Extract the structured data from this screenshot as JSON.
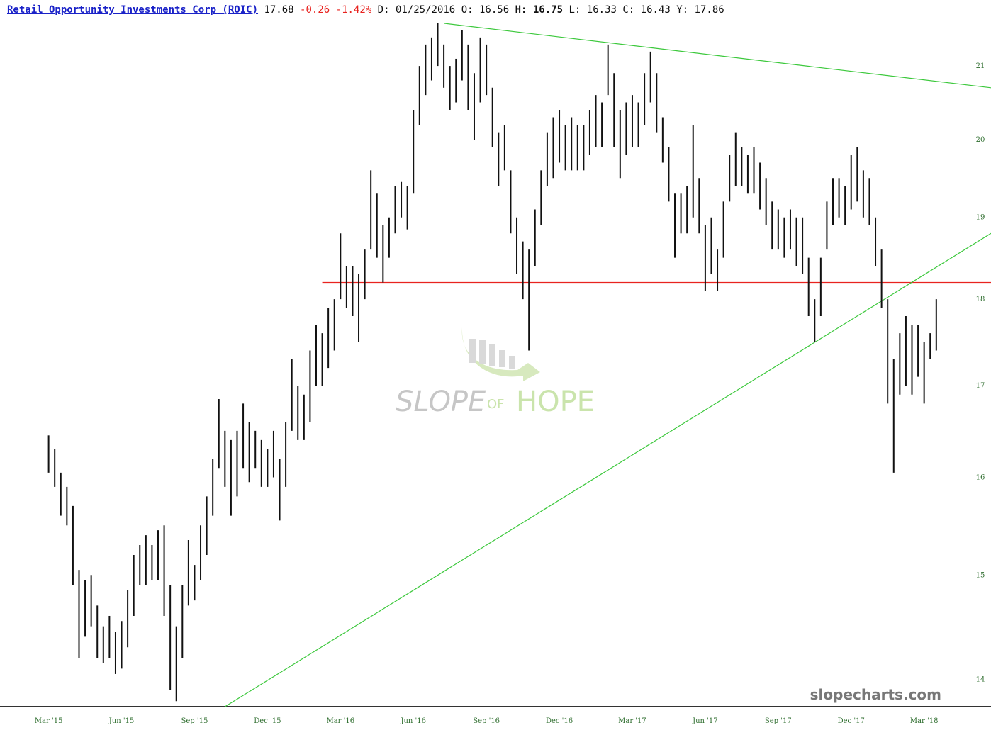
{
  "header": {
    "title": "Retail Opportunity Investments Corp (ROIC)",
    "last": 17.68,
    "change": -0.26,
    "change_pct": "-1.42%",
    "quote": [
      {
        "label": "D:",
        "value": "01/25/2016"
      },
      {
        "label": "O:",
        "value": 16.56
      },
      {
        "label": "H:",
        "value": 16.75
      },
      {
        "label": "L:",
        "value": 16.33
      },
      {
        "label": "C:",
        "value": 16.43
      },
      {
        "label": "Y:",
        "value": 17.86
      }
    ]
  },
  "watermark": {
    "slope": "SLOPE",
    "of": "OF",
    "hope": "HOPE"
  },
  "site": "slopecharts.com",
  "chart_data": {
    "type": "ohlc",
    "color": "#111111",
    "log_scale": true,
    "categories": [
      "Mar '15",
      null,
      null,
      null,
      null,
      null,
      null,
      null,
      null,
      null,
      null,
      null,
      "Jun '15",
      null,
      null,
      null,
      null,
      null,
      null,
      null,
      null,
      null,
      null,
      null,
      "Sep '15",
      null,
      null,
      null,
      null,
      null,
      null,
      null,
      null,
      null,
      null,
      null,
      "Dec '15",
      null,
      null,
      null,
      null,
      null,
      null,
      null,
      null,
      null,
      null,
      null,
      "Mar '16",
      null,
      null,
      null,
      null,
      null,
      null,
      null,
      null,
      null,
      null,
      null,
      "Jun '16",
      null,
      null,
      null,
      null,
      null,
      null,
      null,
      null,
      null,
      null,
      null,
      "Sep '16",
      null,
      null,
      null,
      null,
      null,
      null,
      null,
      null,
      null,
      null,
      null,
      "Dec '16",
      null,
      null,
      null,
      null,
      null,
      null,
      null,
      null,
      null,
      null,
      null,
      "Mar '17",
      null,
      null,
      null,
      null,
      null,
      null,
      null,
      null,
      null,
      null,
      null,
      "Jun '17",
      null,
      null,
      null,
      null,
      null,
      null,
      null,
      null,
      null,
      null,
      null,
      "Sep '17",
      null,
      null,
      null,
      null,
      null,
      null,
      null,
      null,
      null,
      null,
      null,
      "Dec '17",
      null,
      null,
      null,
      null,
      null,
      null,
      null,
      null,
      null,
      null,
      null,
      "Mar '18",
      null,
      null
    ],
    "high": [
      16.45,
      16.3,
      16.05,
      15.9,
      15.7,
      15.05,
      14.95,
      15.0,
      14.7,
      14.5,
      14.6,
      14.45,
      14.55,
      14.85,
      15.2,
      15.3,
      15.4,
      15.3,
      15.45,
      15.5,
      14.9,
      14.5,
      14.9,
      15.35,
      15.1,
      15.5,
      15.8,
      16.2,
      16.85,
      16.5,
      16.4,
      16.5,
      16.8,
      16.6,
      16.5,
      16.4,
      16.3,
      16.5,
      16.2,
      16.6,
      17.3,
      17.0,
      16.9,
      17.4,
      17.7,
      17.6,
      17.9,
      18.0,
      18.8,
      18.4,
      18.4,
      18.3,
      18.6,
      19.6,
      19.3,
      18.9,
      19.0,
      19.4,
      19.45,
      19.4,
      20.4,
      21.0,
      21.3,
      21.4,
      21.6,
      21.3,
      21.0,
      21.1,
      21.5,
      21.3,
      20.9,
      21.4,
      21.3,
      20.7,
      20.1,
      20.2,
      19.6,
      19.0,
      18.7,
      18.6,
      19.1,
      19.6,
      20.1,
      20.3,
      20.4,
      20.2,
      20.3,
      20.2,
      20.2,
      20.4,
      20.6,
      20.5,
      21.3,
      20.9,
      20.4,
      20.5,
      20.6,
      20.5,
      20.9,
      21.2,
      20.9,
      20.3,
      19.9,
      19.3,
      19.3,
      19.4,
      20.2,
      19.5,
      18.9,
      19.0,
      18.6,
      19.2,
      19.8,
      20.1,
      19.9,
      19.8,
      19.9,
      19.7,
      19.5,
      19.2,
      19.1,
      19.0,
      19.1,
      19.0,
      19.0,
      18.5,
      18.0,
      18.5,
      19.2,
      19.5,
      19.5,
      19.4,
      19.8,
      19.9,
      19.6,
      19.5,
      19.0,
      18.6,
      18.0,
      17.3,
      17.6,
      17.8,
      17.7,
      17.7,
      17.5,
      17.6,
      18.0
    ],
    "low": [
      16.05,
      15.9,
      15.6,
      15.5,
      14.9,
      14.2,
      14.4,
      14.5,
      14.2,
      14.15,
      14.2,
      14.05,
      14.1,
      14.3,
      14.6,
      14.9,
      14.9,
      14.95,
      14.95,
      14.6,
      13.9,
      13.8,
      14.2,
      14.7,
      14.75,
      14.95,
      15.2,
      15.6,
      16.1,
      15.9,
      15.6,
      15.8,
      16.1,
      15.95,
      16.1,
      15.9,
      15.9,
      16.0,
      15.55,
      15.9,
      16.5,
      16.4,
      16.4,
      16.6,
      17.0,
      17.0,
      17.2,
      17.4,
      18.0,
      17.9,
      17.8,
      17.5,
      18.0,
      18.6,
      18.5,
      18.2,
      18.5,
      18.8,
      19.0,
      18.85,
      19.3,
      20.2,
      20.6,
      20.8,
      21.0,
      20.7,
      20.4,
      20.5,
      20.8,
      20.4,
      20.0,
      20.5,
      20.6,
      19.9,
      19.4,
      19.6,
      18.8,
      18.3,
      18.0,
      17.4,
      18.4,
      18.9,
      19.4,
      19.5,
      19.7,
      19.6,
      19.6,
      19.6,
      19.6,
      19.8,
      19.9,
      19.9,
      20.6,
      19.9,
      19.5,
      19.8,
      19.9,
      19.9,
      20.2,
      20.5,
      20.1,
      19.7,
      19.2,
      18.5,
      18.8,
      18.8,
      19.0,
      18.8,
      18.1,
      18.3,
      18.1,
      18.5,
      19.2,
      19.4,
      19.4,
      19.3,
      19.3,
      19.1,
      18.9,
      18.6,
      18.6,
      18.5,
      18.6,
      18.4,
      18.3,
      17.8,
      17.5,
      17.8,
      18.6,
      18.9,
      19.0,
      18.9,
      19.1,
      19.2,
      19.0,
      18.9,
      18.4,
      17.9,
      16.8,
      16.05,
      16.9,
      17.0,
      16.9,
      17.1,
      16.8,
      17.3,
      17.4
    ],
    "trendlines": [
      {
        "color": "#e8231f",
        "points": [
          [
            45,
            18.2
          ],
          [
            155,
            18.2
          ]
        ]
      },
      {
        "color": "#3cc83c",
        "points": [
          [
            65,
            21.6
          ],
          [
            155,
            20.7
          ]
        ]
      },
      {
        "color": "#3cc83c",
        "points": [
          [
            29,
            13.75
          ],
          [
            155,
            18.8
          ]
        ]
      }
    ],
    "xlim": [
      -8,
      155
    ],
    "ylim": [
      13.75,
      21.63
    ],
    "yticks": [
      14,
      15,
      16,
      17,
      18,
      19,
      20,
      21
    ]
  }
}
